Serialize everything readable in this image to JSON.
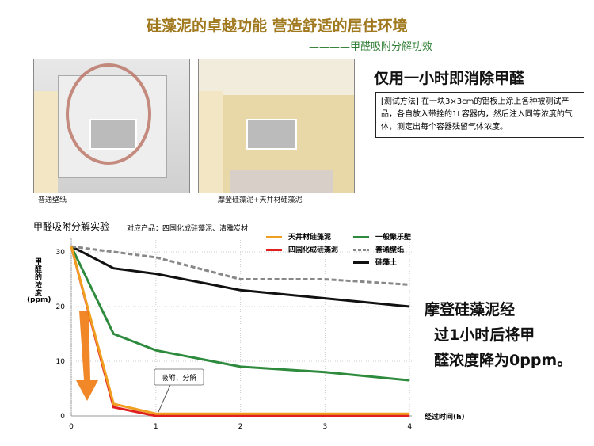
{
  "header": {
    "title": "硅藻泥的卓越功能 营造舒适的居住环境",
    "subtitle": "————甲醛吸附分解功效"
  },
  "rooms": [
    {
      "caption": "普通壁纸"
    },
    {
      "caption": "摩登硅藻泥+天井材硅藻泥"
    }
  ],
  "headline": "仅用一小时即消除甲醛",
  "method_note": "[测试方法] 在一块3×3cm的铝板上涂上各种被测试产品，各自放入带拴的1L容器内，然后注入同等浓度的气体，测定出每个容器残留气体浓度。",
  "conclusion": [
    "摩登硅藻泥经",
    "过1小时后将甲",
    "醛浓度降为0ppm。"
  ],
  "chart_data": {
    "type": "line",
    "title": "甲醛吸附分解实验",
    "subtitle": "对应产品：四国化成硅藻泥、清雅炭材",
    "xlabel": "经过时间(h)",
    "ylabel": "甲醛的浓度",
    "yunit": "(ppm)",
    "xlim": [
      0,
      4
    ],
    "ylim": [
      0,
      30
    ],
    "xticks": [
      "0",
      "1",
      "2",
      "3",
      "4"
    ],
    "yticks": [
      "0",
      "10",
      "20",
      "30"
    ],
    "annotation": "吸附、分解",
    "x": [
      0,
      0.5,
      1,
      2,
      3,
      4
    ],
    "series": [
      {
        "name": "天井材硅藻泥",
        "color": "#f0a020",
        "values": [
          31,
          2.2,
          0.4,
          0.4,
          0.4,
          0.4
        ]
      },
      {
        "name": "四国化成硅藻泥",
        "color": "#e02020",
        "values": [
          31,
          1.6,
          0,
          0,
          0,
          0
        ]
      },
      {
        "name": "一般聚乐壁",
        "color": "#2e8b3e",
        "values": [
          31,
          15,
          12,
          9,
          8,
          6.5
        ]
      },
      {
        "name": "普通壁纸",
        "color": "#888888",
        "dashed": true,
        "values": [
          31,
          30,
          29,
          25,
          25,
          24
        ]
      },
      {
        "name": "硅藻土",
        "color": "#111111",
        "values": [
          31,
          27,
          26,
          23,
          21.5,
          20
        ]
      }
    ]
  }
}
